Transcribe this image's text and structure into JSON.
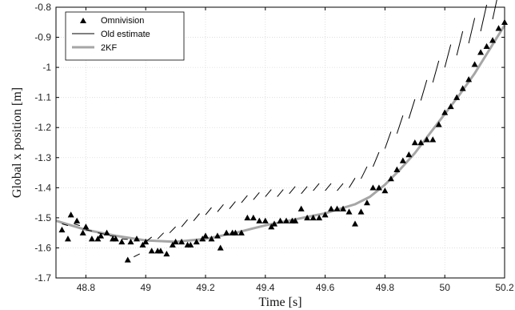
{
  "chart_data": {
    "type": "scatter",
    "title": "",
    "xlabel": "Time [s]",
    "ylabel": "Global x position [m]",
    "xlim": [
      48.7,
      50.2
    ],
    "ylim": [
      -1.7,
      -0.8
    ],
    "xticks": [
      48.8,
      49.0,
      49.2,
      49.4,
      49.6,
      49.8,
      50.0,
      50.2
    ],
    "xtick_labels": [
      "48.8",
      "49",
      "49.2",
      "49.4",
      "49.6",
      "49.8",
      "50",
      "50.2"
    ],
    "yticks": [
      -1.7,
      -1.6,
      -1.5,
      -1.4,
      -1.3,
      -1.2,
      -1.1,
      -1.0,
      -0.9,
      -0.8
    ],
    "ytick_labels": [
      "-1.7",
      "-1.6",
      "-1.5",
      "-1.4",
      "-1.3",
      "-1.2",
      "-1.1",
      "-1",
      "-0.9",
      "-0.8"
    ],
    "grid": true,
    "legend_position": "top-left",
    "series": [
      {
        "name": "Omnivision",
        "style": "triangle-markers",
        "color": "#000000",
        "points": [
          [
            48.72,
            -1.54
          ],
          [
            48.74,
            -1.57
          ],
          [
            48.75,
            -1.49
          ],
          [
            48.77,
            -1.51
          ],
          [
            48.79,
            -1.55
          ],
          [
            48.8,
            -1.53
          ],
          [
            48.82,
            -1.57
          ],
          [
            48.84,
            -1.57
          ],
          [
            48.85,
            -1.56
          ],
          [
            48.87,
            -1.55
          ],
          [
            48.89,
            -1.57
          ],
          [
            48.9,
            -1.57
          ],
          [
            48.92,
            -1.58
          ],
          [
            48.94,
            -1.64
          ],
          [
            48.95,
            -1.58
          ],
          [
            48.97,
            -1.57
          ],
          [
            48.99,
            -1.59
          ],
          [
            49.0,
            -1.58
          ],
          [
            49.02,
            -1.61
          ],
          [
            49.04,
            -1.61
          ],
          [
            49.05,
            -1.61
          ],
          [
            49.07,
            -1.62
          ],
          [
            49.09,
            -1.59
          ],
          [
            49.1,
            -1.58
          ],
          [
            49.12,
            -1.58
          ],
          [
            49.14,
            -1.59
          ],
          [
            49.15,
            -1.59
          ],
          [
            49.17,
            -1.58
          ],
          [
            49.19,
            -1.57
          ],
          [
            49.2,
            -1.56
          ],
          [
            49.22,
            -1.57
          ],
          [
            49.24,
            -1.56
          ],
          [
            49.25,
            -1.6
          ],
          [
            49.27,
            -1.55
          ],
          [
            49.29,
            -1.55
          ],
          [
            49.3,
            -1.55
          ],
          [
            49.32,
            -1.55
          ],
          [
            49.34,
            -1.5
          ],
          [
            49.36,
            -1.5
          ],
          [
            49.38,
            -1.51
          ],
          [
            49.4,
            -1.51
          ],
          [
            49.42,
            -1.53
          ],
          [
            49.43,
            -1.52
          ],
          [
            49.45,
            -1.51
          ],
          [
            49.47,
            -1.51
          ],
          [
            49.49,
            -1.51
          ],
          [
            49.5,
            -1.51
          ],
          [
            49.52,
            -1.47
          ],
          [
            49.54,
            -1.5
          ],
          [
            49.56,
            -1.5
          ],
          [
            49.58,
            -1.5
          ],
          [
            49.6,
            -1.49
          ],
          [
            49.62,
            -1.47
          ],
          [
            49.64,
            -1.47
          ],
          [
            49.66,
            -1.47
          ],
          [
            49.68,
            -1.48
          ],
          [
            49.7,
            -1.52
          ],
          [
            49.72,
            -1.48
          ],
          [
            49.74,
            -1.45
          ],
          [
            49.76,
            -1.4
          ],
          [
            49.78,
            -1.4
          ],
          [
            49.8,
            -1.41
          ],
          [
            49.82,
            -1.37
          ],
          [
            49.84,
            -1.34
          ],
          [
            49.86,
            -1.31
          ],
          [
            49.88,
            -1.29
          ],
          [
            49.9,
            -1.25
          ],
          [
            49.92,
            -1.25
          ],
          [
            49.94,
            -1.24
          ],
          [
            49.96,
            -1.24
          ],
          [
            49.98,
            -1.19
          ],
          [
            50.0,
            -1.15
          ],
          [
            50.02,
            -1.13
          ],
          [
            50.04,
            -1.1
          ],
          [
            50.06,
            -1.07
          ],
          [
            50.08,
            -1.04
          ],
          [
            50.1,
            -0.99
          ],
          [
            50.12,
            -0.95
          ],
          [
            50.14,
            -0.93
          ],
          [
            50.16,
            -0.91
          ],
          [
            50.18,
            -0.87
          ],
          [
            50.2,
            -0.85
          ]
        ]
      },
      {
        "name": "Old estimate",
        "style": "short-dashes",
        "color": "#000000",
        "dash_step": 0.02,
        "dash_slopes": [
          [
            48.72,
            -1.52,
            -0.3
          ],
          [
            48.76,
            -1.52,
            -0.3
          ],
          [
            48.8,
            -1.54,
            -0.2
          ],
          [
            48.84,
            -1.55,
            -0.2
          ],
          [
            48.88,
            -1.56,
            -0.1
          ],
          [
            48.92,
            -1.57,
            -0.1
          ],
          [
            48.96,
            -1.63,
            0.5
          ],
          [
            49.0,
            -1.58,
            0.8
          ],
          [
            49.04,
            -1.57,
            1.0
          ],
          [
            49.08,
            -1.55,
            1.0
          ],
          [
            49.12,
            -1.53,
            1.2
          ],
          [
            49.16,
            -1.51,
            1.2
          ],
          [
            49.2,
            -1.49,
            1.2
          ],
          [
            49.24,
            -1.48,
            1.2
          ],
          [
            49.28,
            -1.47,
            1.2
          ],
          [
            49.32,
            -1.45,
            1.2
          ],
          [
            49.36,
            -1.44,
            1.2
          ],
          [
            49.4,
            -1.43,
            1.2
          ],
          [
            49.44,
            -1.43,
            1.2
          ],
          [
            49.48,
            -1.42,
            1.2
          ],
          [
            49.52,
            -1.42,
            1.2
          ],
          [
            49.56,
            -1.41,
            1.2
          ],
          [
            49.6,
            -1.41,
            1.2
          ],
          [
            49.64,
            -1.41,
            1.2
          ],
          [
            49.68,
            -1.4,
            1.6
          ],
          [
            49.72,
            -1.37,
            2.0
          ],
          [
            49.76,
            -1.33,
            2.4
          ],
          [
            49.8,
            -1.27,
            2.8
          ],
          [
            49.84,
            -1.22,
            3.0
          ],
          [
            49.88,
            -1.17,
            3.2
          ],
          [
            49.92,
            -1.11,
            3.4
          ],
          [
            49.96,
            -1.05,
            3.6
          ],
          [
            50.0,
            -1.0,
            3.8
          ],
          [
            50.04,
            -0.96,
            4.0
          ],
          [
            50.08,
            -0.92,
            4.2
          ],
          [
            50.12,
            -0.88,
            4.4
          ],
          [
            50.16,
            -0.84,
            4.6
          ]
        ]
      },
      {
        "name": "2KF",
        "style": "line",
        "color": "#a6a6a6",
        "x": [
          48.7,
          48.8,
          48.9,
          49.0,
          49.1,
          49.2,
          49.3,
          49.4,
          49.5,
          49.6,
          49.7,
          49.75,
          49.8,
          49.85,
          49.9,
          49.95,
          50.0,
          50.05,
          50.1,
          50.15,
          50.2
        ],
        "y": [
          -1.51,
          -1.54,
          -1.56,
          -1.575,
          -1.58,
          -1.57,
          -1.55,
          -1.525,
          -1.505,
          -1.485,
          -1.455,
          -1.43,
          -1.39,
          -1.34,
          -1.285,
          -1.22,
          -1.155,
          -1.09,
          -1.02,
          -0.94,
          -0.86
        ]
      }
    ]
  }
}
